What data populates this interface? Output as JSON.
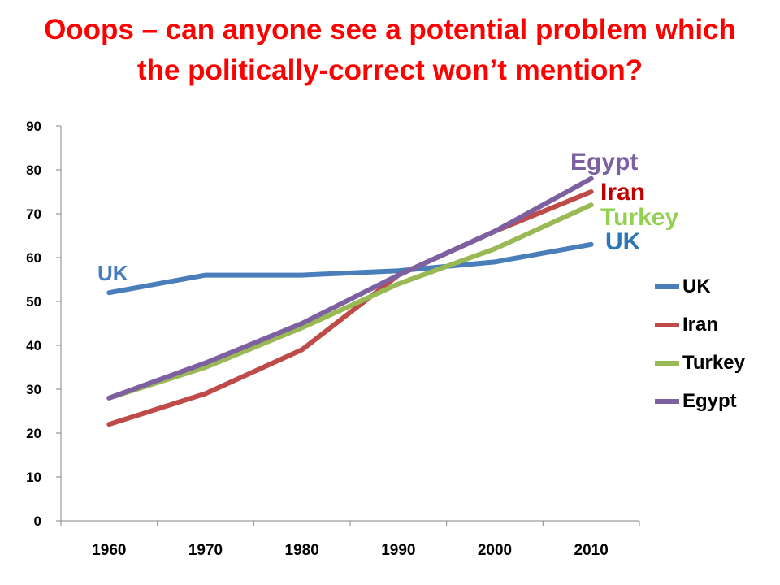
{
  "title_lines": [
    "Ooops – can anyone see a potential problem which",
    "the politically-correct won’t mention?"
  ],
  "chart_data": {
    "type": "line",
    "title": "Ooops – can anyone see a potential problem which the politically-correct won’t mention?",
    "categories": [
      "1960",
      "1970",
      "1980",
      "1990",
      "2000",
      "2010"
    ],
    "ylim": [
      0,
      90
    ],
    "yticks": [
      0,
      10,
      20,
      30,
      40,
      50,
      60,
      70,
      80,
      90
    ],
    "grid": false,
    "legend_position": "right",
    "series": [
      {
        "name": "UK",
        "color": "#4a7ebb",
        "values": [
          52,
          56,
          56,
          57,
          59,
          63
        ]
      },
      {
        "name": "Iran",
        "color": "#be4b48",
        "values": [
          22,
          29,
          39,
          56,
          66,
          75
        ]
      },
      {
        "name": "Turkey",
        "color": "#98b954",
        "values": [
          28,
          35,
          44,
          54,
          62,
          72
        ]
      },
      {
        "name": "Egypt",
        "color": "#7d60a0",
        "values": [
          28,
          36,
          45,
          56,
          66,
          78
        ]
      }
    ],
    "annotations": [
      {
        "text": "UK",
        "color": "#4a7ebb"
      },
      {
        "text": "Egypt",
        "color": "#7d60a0"
      },
      {
        "text": "Iran",
        "color": "#c00000"
      },
      {
        "text": "Turkey",
        "color": "#92d050"
      },
      {
        "text": "UK",
        "color": "#2e75b6"
      }
    ]
  }
}
